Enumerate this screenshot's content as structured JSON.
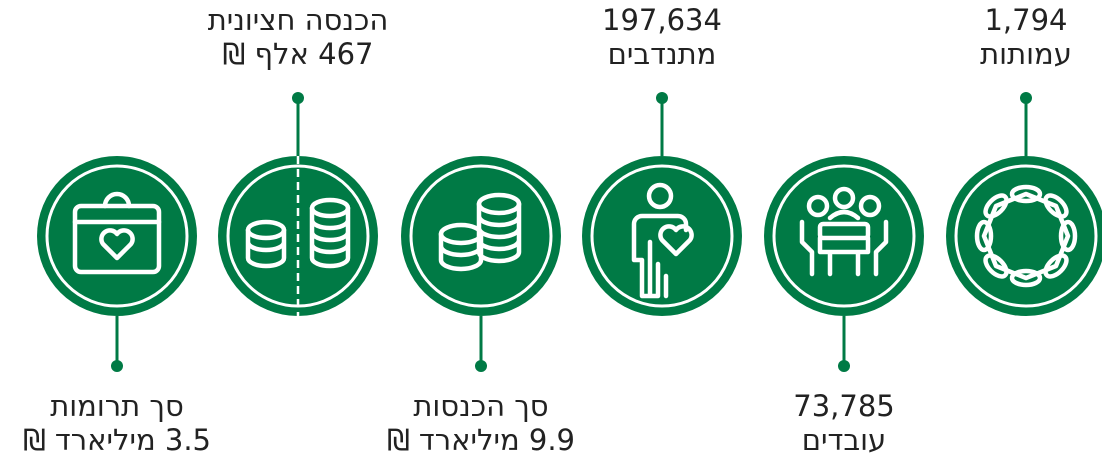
{
  "items": [
    {
      "lines": [
        "1,794",
        "עמותות"
      ]
    },
    {
      "lines": [
        "73,785",
        "עובדים"
      ]
    },
    {
      "lines": [
        "197,634",
        "מתנדבים"
      ]
    },
    {
      "lines": [
        "סך הכנסות",
        "9.9 מיליארד ₪"
      ]
    },
    {
      "lines": [
        "הכנסה חציונית",
        "467 אלף ₪"
      ]
    },
    {
      "lines": [
        "סך תרומות",
        "3.5 מיליארד ₪"
      ]
    }
  ]
}
